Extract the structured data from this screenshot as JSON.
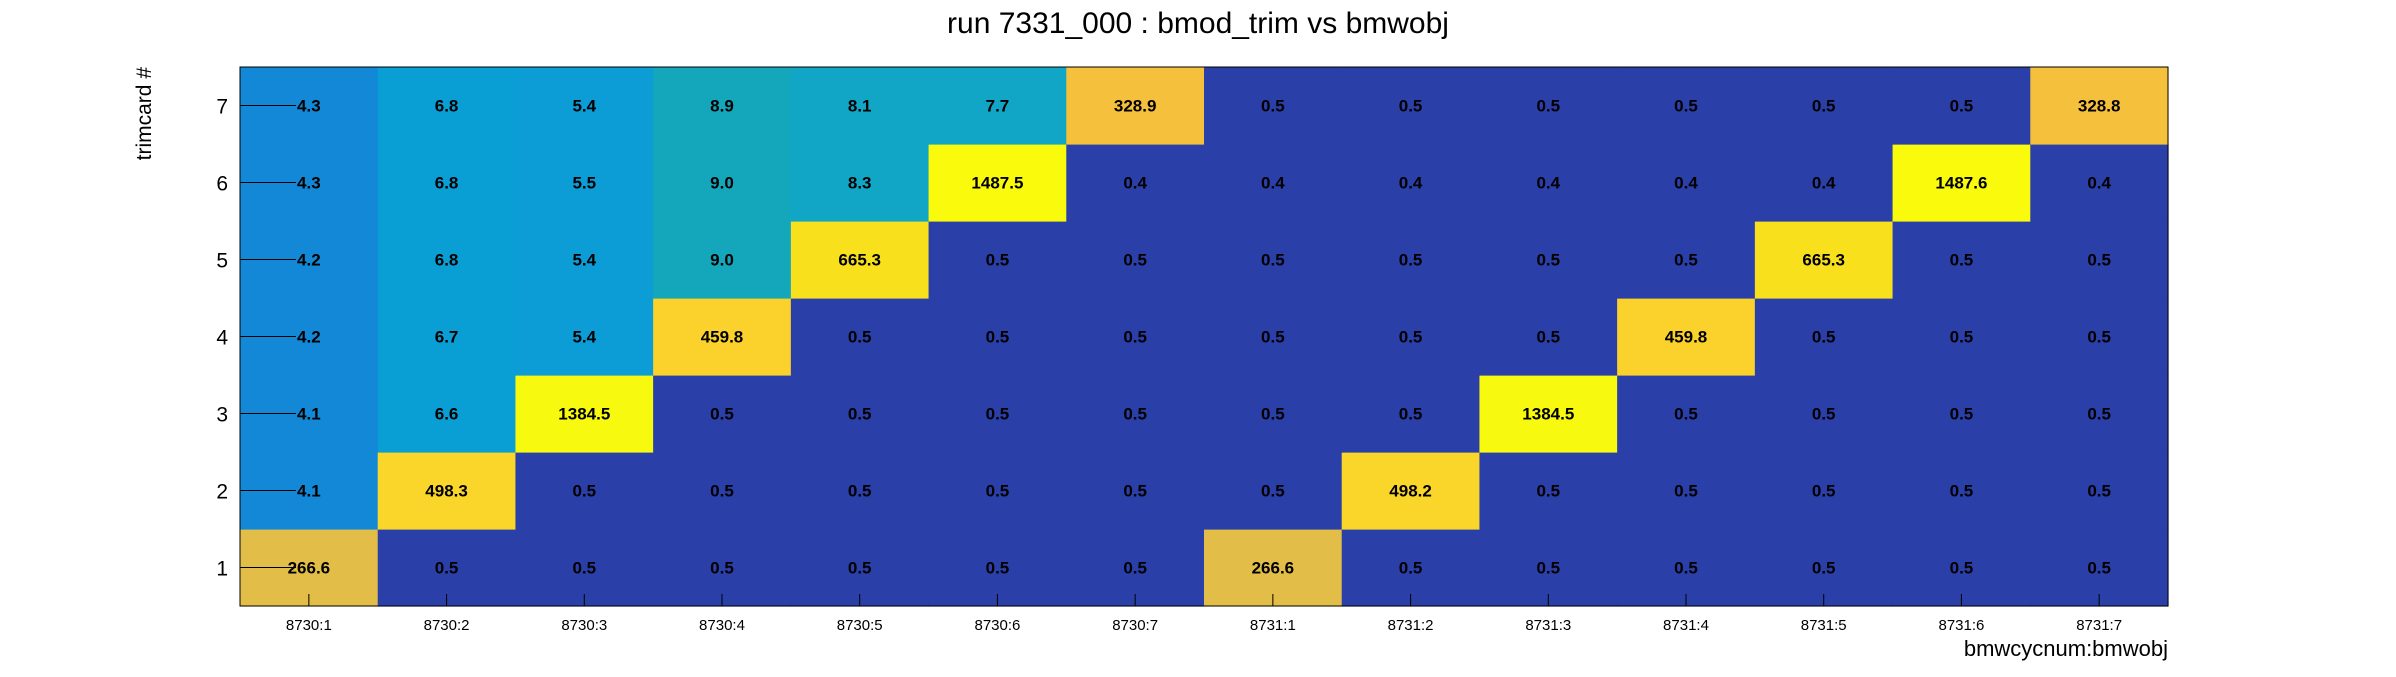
{
  "chart_data": {
    "type": "heatmap",
    "title": "run 7331_000 : bmod_trim vs bmwobj",
    "xlabel": "bmwcycnum:bmwobj",
    "ylabel": "trimcard #",
    "x_categories": [
      "8730:1",
      "8730:2",
      "8730:3",
      "8730:4",
      "8730:5",
      "8730:6",
      "8730:7",
      "8731:1",
      "8731:2",
      "8731:3",
      "8731:4",
      "8731:5",
      "8731:6",
      "8731:7"
    ],
    "y_categories": [
      "1",
      "2",
      "3",
      "4",
      "5",
      "6",
      "7"
    ],
    "values": [
      [
        266.6,
        0.5,
        0.5,
        0.5,
        0.5,
        0.5,
        0.5,
        266.6,
        0.5,
        0.5,
        0.5,
        0.5,
        0.5,
        0.5
      ],
      [
        4.1,
        498.3,
        0.5,
        0.5,
        0.5,
        0.5,
        0.5,
        0.5,
        498.2,
        0.5,
        0.5,
        0.5,
        0.5,
        0.5
      ],
      [
        4.1,
        6.6,
        1384.5,
        0.5,
        0.5,
        0.5,
        0.5,
        0.5,
        0.5,
        1384.5,
        0.5,
        0.5,
        0.5,
        0.5
      ],
      [
        4.2,
        6.7,
        5.4,
        459.8,
        0.5,
        0.5,
        0.5,
        0.5,
        0.5,
        0.5,
        459.8,
        0.5,
        0.5,
        0.5
      ],
      [
        4.2,
        6.8,
        5.4,
        9.0,
        665.3,
        0.5,
        0.5,
        0.5,
        0.5,
        0.5,
        0.5,
        665.3,
        0.5,
        0.5
      ],
      [
        4.3,
        6.8,
        5.5,
        9.0,
        8.3,
        1487.5,
        0.4,
        0.4,
        0.4,
        0.4,
        0.4,
        0.4,
        1487.6,
        0.4
      ],
      [
        4.3,
        6.8,
        5.4,
        8.9,
        8.1,
        7.7,
        328.9,
        0.5,
        0.5,
        0.5,
        0.5,
        0.5,
        0.5,
        328.8
      ]
    ],
    "colors": {
      "low": "#2a3fa8",
      "blue_4": "#1288d6",
      "blue_5": "#0c9cd6",
      "blue_7": "#099fd4",
      "teal_8": "#12a6c6",
      "teal_9": "#14a7bc",
      "gold_266": "#e2be48",
      "gold_329": "#f5c03c",
      "yellow_460": "#fbd12c",
      "yellow_498": "#fbd62a",
      "yellow_665": "#f8e01c",
      "yellow_1384": "#f7f90f",
      "yellow_1487": "#fafa0c"
    }
  }
}
